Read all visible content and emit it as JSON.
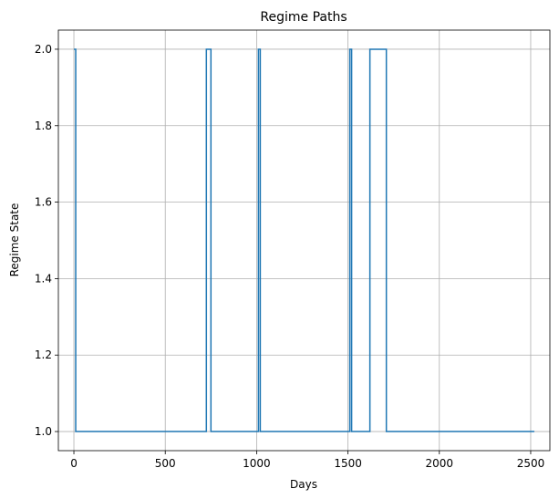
{
  "chart_data": {
    "type": "line",
    "title": "Regime Paths",
    "xlabel": "Days",
    "ylabel": "Regime State",
    "xlim": [
      -85,
      2605
    ],
    "ylim": [
      0.95,
      2.05
    ],
    "xticks": [
      0,
      500,
      1000,
      1500,
      2000,
      2500
    ],
    "yticks": [
      1.0,
      1.2,
      1.4,
      1.6,
      1.8,
      2.0
    ],
    "grid": true,
    "color": "#1f77b4",
    "series": [
      {
        "step": true,
        "x": [
          0,
          10,
          725,
          750,
          1010,
          1020,
          1510,
          1520,
          1620,
          1710,
          2520
        ],
        "y": [
          2,
          1,
          2,
          1,
          2,
          1,
          2,
          1,
          2,
          1,
          1
        ]
      }
    ]
  }
}
